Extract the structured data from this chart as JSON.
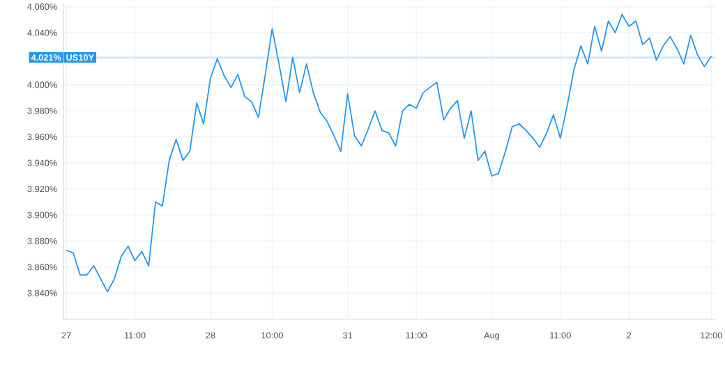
{
  "chart_data": {
    "type": "line",
    "categories": [
      "27",
      null,
      null,
      null,
      null,
      null,
      null,
      null,
      null,
      null,
      "11:00",
      null,
      null,
      null,
      null,
      null,
      null,
      null,
      null,
      null,
      null,
      "28",
      null,
      null,
      null,
      null,
      null,
      null,
      null,
      null,
      "10:00",
      null,
      null,
      null,
      null,
      null,
      null,
      null,
      null,
      null,
      null,
      "31",
      null,
      null,
      null,
      null,
      null,
      null,
      null,
      null,
      null,
      "11:00",
      null,
      null,
      null,
      null,
      null,
      null,
      null,
      null,
      null,
      null,
      "Aug",
      null,
      null,
      null,
      null,
      null,
      null,
      null,
      null,
      null,
      "11:00",
      null,
      null,
      null,
      null,
      null,
      null,
      null,
      null,
      null,
      "2",
      null,
      null,
      null,
      null,
      null,
      null,
      null,
      null,
      null,
      null,
      null,
      "12:00"
    ],
    "values": [
      3.873,
      3.871,
      3.854,
      3.854,
      3.861,
      3.851,
      3.841,
      3.851,
      3.868,
      3.876,
      3.865,
      3.872,
      3.861,
      3.91,
      3.907,
      3.942,
      3.958,
      3.942,
      3.949,
      3.986,
      3.97,
      4.005,
      4.02,
      4.007,
      3.998,
      4.008,
      3.991,
      3.987,
      3.975,
      4.008,
      4.043,
      4.016,
      3.987,
      4.021,
      3.994,
      4.016,
      3.994,
      3.979,
      3.972,
      3.961,
      3.949,
      3.993,
      3.961,
      3.953,
      3.966,
      3.98,
      3.965,
      3.963,
      3.953,
      3.98,
      3.985,
      3.982,
      3.994,
      3.998,
      4.002,
      3.973,
      3.982,
      3.988,
      3.959,
      3.98,
      3.942,
      3.949,
      3.93,
      3.932,
      3.949,
      3.968,
      3.97,
      3.965,
      3.959,
      3.952,
      3.963,
      3.977,
      3.959,
      3.984,
      4.012,
      4.03,
      4.016,
      4.045,
      4.026,
      4.049,
      4.04,
      4.054,
      4.045,
      4.049,
      4.031,
      4.036,
      4.019,
      4.03,
      4.037,
      4.028,
      4.016,
      4.038,
      4.023,
      4.014,
      4.022
    ],
    "color": "#2196f3",
    "ylim": [
      3.82,
      4.062
    ],
    "yticks": [
      {
        "value": 3.84,
        "label": "3.840%"
      },
      {
        "value": 3.86,
        "label": "3.860%"
      },
      {
        "value": 3.88,
        "label": "3.880%"
      },
      {
        "value": 3.9,
        "label": "3.900%"
      },
      {
        "value": 3.92,
        "label": "3.920%"
      },
      {
        "value": 3.94,
        "label": "3.940%"
      },
      {
        "value": 3.96,
        "label": "3.960%"
      },
      {
        "value": 3.98,
        "label": "3.980%"
      },
      {
        "value": 4.0,
        "label": "4.000%"
      },
      {
        "value": 4.02,
        "label": null
      },
      {
        "value": 4.04,
        "label": "4.040%"
      },
      {
        "value": 4.06,
        "label": "4.060%"
      }
    ],
    "grid": true,
    "ref_lines": [
      {
        "axis": "y",
        "value": 4.021,
        "label": "4.021%",
        "color": "#cfe2f6"
      }
    ],
    "annotations": [
      "US10Y"
    ]
  }
}
